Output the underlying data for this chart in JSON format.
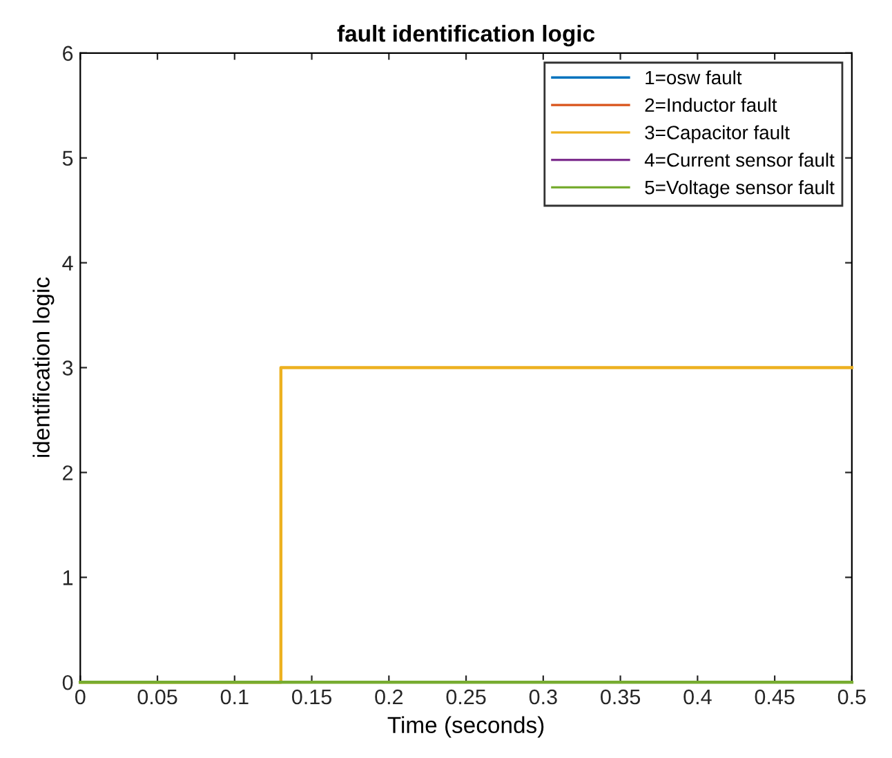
{
  "chart_data": {
    "type": "step",
    "title": "fault identification logic",
    "xlabel": "Time (seconds)",
    "ylabel": "identification logic",
    "xlim": [
      0,
      0.5
    ],
    "ylim": [
      0,
      6
    ],
    "xticks": [
      0,
      0.05,
      0.1,
      0.15,
      0.2,
      0.25,
      0.3,
      0.35,
      0.4,
      0.45,
      0.5
    ],
    "yticks": [
      0,
      1,
      2,
      3,
      4,
      5,
      6
    ],
    "grid": false,
    "legend": "top right",
    "line_style": "solid",
    "marker": "none",
    "series": [
      {
        "name": "1=osw fault",
        "color": "#0072bd"
      },
      {
        "name": "2=Inductor fault",
        "color": "#d95319"
      },
      {
        "name": "3=Capacitor fault",
        "color": "#edb120",
        "x": [
          0,
          0.13,
          0.5
        ],
        "values": [
          0,
          3,
          3
        ]
      },
      {
        "name": "4=Current sensor fault",
        "color": "#7e2f8e"
      },
      {
        "name": "5=Voltage sensor fault",
        "color": "#77ac30",
        "x": [
          0,
          0.5
        ],
        "values": [
          0,
          0
        ]
      }
    ]
  }
}
